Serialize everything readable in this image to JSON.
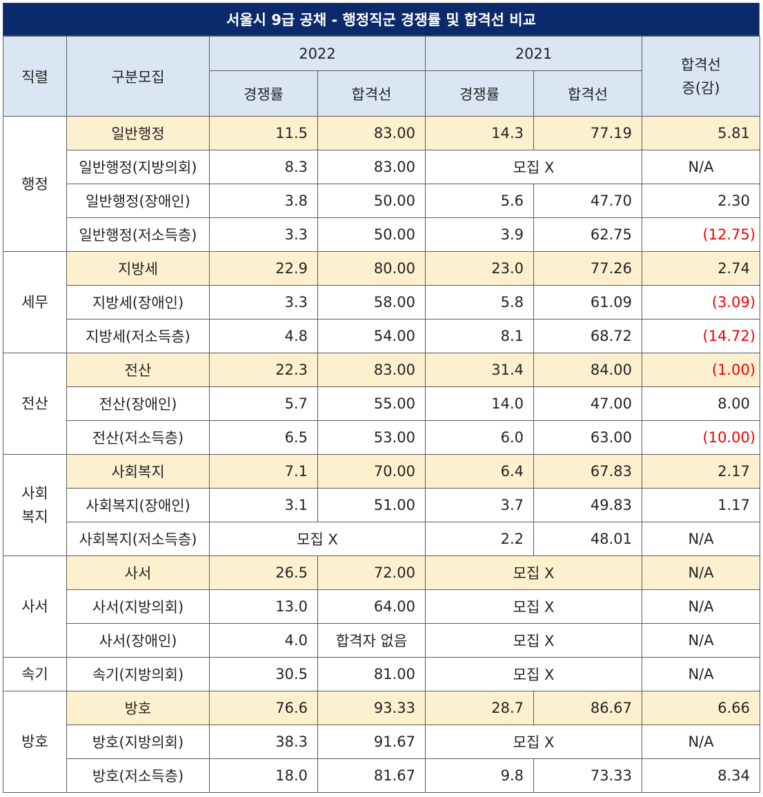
{
  "title": "서울시 9급 공채 - 행정직군 경쟁률 및 합격선 비교",
  "header": {
    "col_jikryeol": "직렬",
    "col_gubun": "구분모집",
    "year1": "2022",
    "year2": "2021",
    "col_change": "합격선\n증(감)",
    "comp": "경쟁률",
    "cutoff": "합격선"
  },
  "groups": [
    {
      "name": "행정",
      "rows": [
        {
          "gubun": "일반행정",
          "c22": "11.5",
          "p22": "83.00",
          "c21": "14.3",
          "p21": "77.19",
          "chg": "5.81",
          "neg": false,
          "hl": true
        },
        {
          "gubun": "일반행정(지방의회)",
          "c22": "8.3",
          "p22": "83.00",
          "m21": "모집 X",
          "chg": "N/A"
        },
        {
          "gubun": "일반행정(장애인)",
          "c22": "3.8",
          "p22": "50.00",
          "c21": "5.6",
          "p21": "47.70",
          "chg": "2.30",
          "neg": false
        },
        {
          "gubun": "일반행정(저소득층)",
          "c22": "3.3",
          "p22": "50.00",
          "c21": "3.9",
          "p21": "62.75",
          "chg": "(12.75)",
          "neg": true
        }
      ]
    },
    {
      "name": "세무",
      "rows": [
        {
          "gubun": "지방세",
          "c22": "22.9",
          "p22": "80.00",
          "c21": "23.0",
          "p21": "77.26",
          "chg": "2.74",
          "neg": false,
          "hl": true
        },
        {
          "gubun": "지방세(장애인)",
          "c22": "3.3",
          "p22": "58.00",
          "c21": "5.8",
          "p21": "61.09",
          "chg": "(3.09)",
          "neg": true
        },
        {
          "gubun": "지방세(저소득층)",
          "c22": "4.8",
          "p22": "54.00",
          "c21": "8.1",
          "p21": "68.72",
          "chg": "(14.72)",
          "neg": true
        }
      ]
    },
    {
      "name": "전산",
      "rows": [
        {
          "gubun": "전산",
          "c22": "22.3",
          "p22": "83.00",
          "c21": "31.4",
          "p21": "84.00",
          "chg": "(1.00)",
          "neg": true,
          "hl": true
        },
        {
          "gubun": "전산(장애인)",
          "c22": "5.7",
          "p22": "55.00",
          "c21": "14.0",
          "p21": "47.00",
          "chg": "8.00",
          "neg": false
        },
        {
          "gubun": "전산(저소득층)",
          "c22": "6.5",
          "p22": "53.00",
          "c21": "6.0",
          "p21": "63.00",
          "chg": "(10.00)",
          "neg": true
        }
      ]
    },
    {
      "name": "사회\n복지",
      "rows": [
        {
          "gubun": "사회복지",
          "c22": "7.1",
          "p22": "70.00",
          "c21": "6.4",
          "p21": "67.83",
          "chg": "2.17",
          "neg": false,
          "hl": true
        },
        {
          "gubun": "사회복지(장애인)",
          "c22": "3.1",
          "p22": "51.00",
          "c21": "3.7",
          "p21": "49.83",
          "chg": "1.17",
          "neg": false
        },
        {
          "gubun": "사회복지(저소득층)",
          "m22": "모집 X",
          "c21": "2.2",
          "p21": "48.01",
          "chg": "N/A",
          "center": true
        }
      ]
    },
    {
      "name": "사서",
      "rows": [
        {
          "gubun": "사서",
          "c22": "26.5",
          "p22": "72.00",
          "m21": "모집 X",
          "chg": "N/A",
          "hl": true
        },
        {
          "gubun": "사서(지방의회)",
          "c22": "13.0",
          "p22": "64.00",
          "m21": "모집 X",
          "chg": "N/A"
        },
        {
          "gubun": "사서(장애인)",
          "c22": "4.0",
          "p22": "합격자 없음",
          "p22c": true,
          "m21": "모집 X",
          "chg": "N/A"
        }
      ]
    },
    {
      "name": "속기",
      "rows": [
        {
          "gubun": "속기(지방의회)",
          "c22": "30.5",
          "p22": "81.00",
          "m21": "모집 X",
          "chg": "N/A"
        }
      ]
    },
    {
      "name": "방호",
      "rows": [
        {
          "gubun": "방호",
          "c22": "76.6",
          "p22": "93.33",
          "c21": "28.7",
          "p21": "86.67",
          "chg": "6.66",
          "neg": false,
          "hl": true
        },
        {
          "gubun": "방호(지방의회)",
          "c22": "38.3",
          "p22": "91.67",
          "m21": "모집 X",
          "chg": "N/A"
        },
        {
          "gubun": "방호(저소득층)",
          "c22": "18.0",
          "p22": "81.67",
          "c21": "9.8",
          "p21": "73.33",
          "chg": "8.34",
          "neg": false
        }
      ]
    }
  ],
  "colors": {
    "title_bg": "#0b2a6b",
    "header_bg": "#dbe6f4",
    "highlight_bg": "#fdf0cf",
    "negative_text": "#ee0000"
  }
}
